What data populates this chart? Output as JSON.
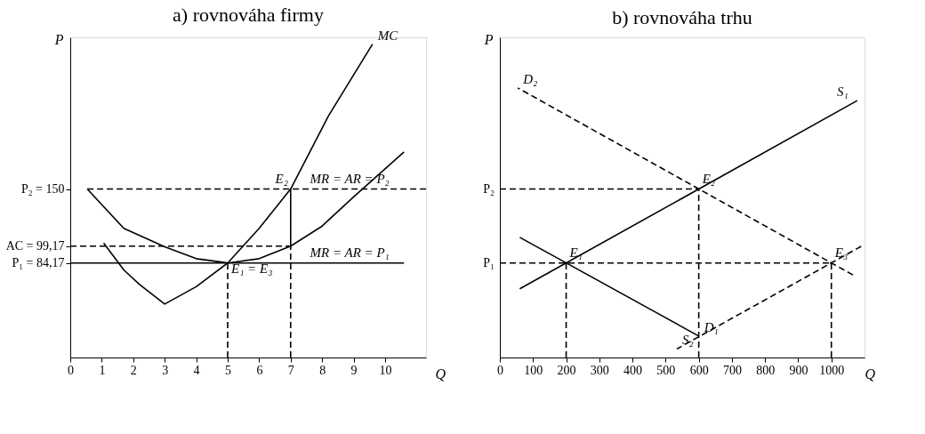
{
  "chart_data": [
    {
      "type": "line",
      "title": "a) rovnováha firmy",
      "xlabel": "Q",
      "ylabel": "P",
      "xlim": [
        0,
        11.3
      ],
      "ylim": [
        0,
        285
      ],
      "xticks": [
        0,
        1,
        2,
        3,
        4,
        5,
        6,
        7,
        8,
        9,
        10
      ],
      "yticks": [
        {
          "value": 84.17,
          "label": "P₁ = 84,17"
        },
        {
          "value": 99.17,
          "label": "AC = 99,17"
        },
        {
          "value": 150,
          "label": "P₂ = 150"
        }
      ],
      "grid": false,
      "legend": false,
      "series": [
        {
          "name": "MC",
          "color": "#000000",
          "line_style": "solid",
          "x": [
            1.06,
            1.7,
            2.2,
            3,
            4,
            5,
            6,
            7,
            8.2,
            9.6
          ],
          "values": [
            102,
            78,
            65,
            47.6,
            63,
            84.17,
            115,
            150,
            215,
            279
          ]
        },
        {
          "color": "#000000",
          "line_style": "solid",
          "x": [
            0.54,
            1.7,
            3,
            4,
            5,
            6,
            7,
            8,
            9,
            10.6
          ],
          "values": [
            150,
            115,
            98.5,
            88,
            84.17,
            88,
            99.17,
            117,
            143,
            183
          ]
        },
        {
          "color": "#000000",
          "line_style": "dashed",
          "x": [
            0.54,
            11.3
          ],
          "values": [
            150,
            150
          ]
        },
        {
          "color": "#000000",
          "line_style": "solid",
          "x": [
            0,
            10.6
          ],
          "values": [
            84.17,
            84.17
          ]
        },
        {
          "color": "#000000",
          "line_style": "dashed",
          "x": [
            0,
            7
          ],
          "values": [
            99.17,
            99.17
          ]
        },
        {
          "color": "#000000",
          "line_style": "dashed",
          "x": [
            5,
            5
          ],
          "values": [
            0,
            84.17
          ]
        },
        {
          "color": "#000000",
          "line_style": "dashed",
          "x": [
            7,
            7
          ],
          "values": [
            0,
            99.17
          ]
        },
        {
          "color": "#000000",
          "line_style": "solid",
          "x": [
            7,
            7
          ],
          "values": [
            150,
            99.17
          ]
        }
      ],
      "annotations": [
        {
          "text": "E₂",
          "x": 6.4,
          "y": 150
        },
        {
          "text": "MR = AR = P₂",
          "x": 7.5,
          "y": 150
        },
        {
          "text": "MR = AR = P₁",
          "x": 7.5,
          "y": 84.17
        },
        {
          "text": "E₁ = E₃",
          "x": 5,
          "y": 70
        }
      ]
    },
    {
      "type": "line",
      "title": "b) rovnováha trhu",
      "xlabel": "Q",
      "ylabel": "P",
      "xlim": [
        0,
        1100
      ],
      "ylim": [
        0,
        285
      ],
      "xticks": [
        0,
        100,
        200,
        300,
        400,
        500,
        600,
        700,
        800,
        900,
        {
          "value": 1000,
          "label": "1000"
        }
      ],
      "tick_labels": "x",
      "grid": false,
      "legend": false,
      "series": [
        {
          "name": "S₁",
          "color": "#000000",
          "line_style": "solid",
          "x": [
            60,
            1078
          ],
          "values": [
            61.1,
            228.7
          ]
        },
        {
          "name": "D₁",
          "color": "#000000",
          "line_style": "solid",
          "x": [
            60,
            600
          ],
          "values": [
            107,
            19.1
          ]
        },
        {
          "name": "D₂",
          "color": "#000000",
          "line_style": "dashed",
          "x": [
            1065,
            54
          ],
          "values": [
            73.5,
            240
          ]
        },
        {
          "name": "S₂",
          "color": "#000000",
          "line_style": "dashed",
          "x": [
            1090,
            534
          ],
          "values": [
            99,
            7.6
          ]
        },
        {
          "color": "#000000",
          "line_style": "dashed",
          "x": [
            0,
            1000
          ],
          "values": [
            84.17,
            84.17
          ]
        },
        {
          "color": "#000000",
          "line_style": "dashed",
          "x": [
            0,
            600
          ],
          "values": [
            150,
            150
          ]
        },
        {
          "color": "#000000",
          "line_style": "dashed",
          "x": [
            200,
            200
          ],
          "values": [
            0,
            84.17
          ]
        },
        {
          "color": "#000000",
          "line_style": "dashed",
          "x": [
            600,
            600
          ],
          "values": [
            0,
            150
          ]
        },
        {
          "color": "#000000",
          "line_style": "dashed",
          "x": [
            1000,
            1000
          ],
          "values": [
            0,
            84.17
          ]
        }
      ],
      "annotations": [
        {
          "text": "P₁",
          "x": 0,
          "y": 84.17
        },
        {
          "text": "P₂",
          "x": 0,
          "y": 150
        },
        {
          "text": "E₂",
          "x": 600,
          "y": 150
        },
        {
          "text": "E₁",
          "x": 200,
          "y": 84.17
        },
        {
          "text": "E₃",
          "x": 1000,
          "y": 84.17
        }
      ]
    }
  ]
}
